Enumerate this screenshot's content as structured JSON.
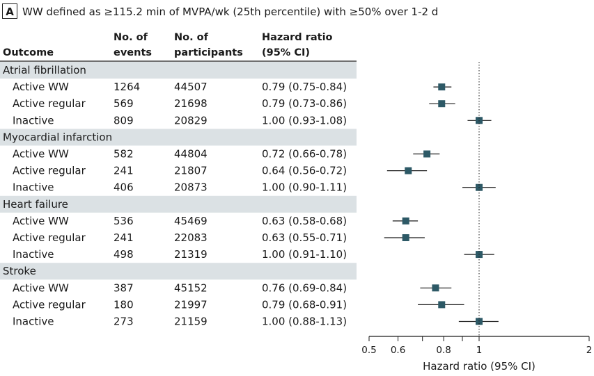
{
  "panel": {
    "letter": "A",
    "title": "WW defined as ≥115.2 min of MVPA/wk (25th percentile) with ≥50% over 1-2 d"
  },
  "table": {
    "headers": {
      "outcome": "Outcome",
      "events_line1": "No. of",
      "events_line2": "events",
      "participants_line1": "No. of",
      "participants_line2": "participants",
      "hr_line1": "Hazard ratio",
      "hr_line2": "(95% CI)"
    }
  },
  "chart_data": {
    "type": "forest",
    "xlabel": "Hazard ratio (95% CI)",
    "xscale": "log",
    "xlim": [
      0.5,
      2
    ],
    "xticks": [
      0.5,
      0.6,
      0.8,
      1,
      2
    ],
    "xtick_labels": [
      "0.5",
      "0.6",
      "0.8",
      "1",
      "2"
    ],
    "reference_line": 1,
    "groups": [
      {
        "name": "Atrial fibrillation",
        "rows": [
          {
            "label": "Active WW",
            "events": "1264",
            "participants": "44507",
            "hr_text": "0.79 (0.75-0.84)",
            "hr": 0.79,
            "lo": 0.75,
            "hi": 0.84
          },
          {
            "label": "Active regular",
            "events": "569",
            "participants": "21698",
            "hr_text": "0.79 (0.73-0.86)",
            "hr": 0.79,
            "lo": 0.73,
            "hi": 0.86
          },
          {
            "label": "Inactive",
            "events": "809",
            "participants": "20829",
            "hr_text": "1.00 (0.93-1.08)",
            "hr": 1.0,
            "lo": 0.93,
            "hi": 1.08
          }
        ]
      },
      {
        "name": "Myocardial infarction",
        "rows": [
          {
            "label": "Active WW",
            "events": "582",
            "participants": "44804",
            "hr_text": "0.72 (0.66-0.78)",
            "hr": 0.72,
            "lo": 0.66,
            "hi": 0.78
          },
          {
            "label": "Active regular",
            "events": "241",
            "participants": "21807",
            "hr_text": "0.64 (0.56-0.72)",
            "hr": 0.64,
            "lo": 0.56,
            "hi": 0.72
          },
          {
            "label": "Inactive",
            "events": "406",
            "participants": "20873",
            "hr_text": "1.00 (0.90-1.11)",
            "hr": 1.0,
            "lo": 0.9,
            "hi": 1.11
          }
        ]
      },
      {
        "name": "Heart failure",
        "rows": [
          {
            "label": "Active WW",
            "events": "536",
            "participants": "45469",
            "hr_text": "0.63 (0.58-0.68)",
            "hr": 0.63,
            "lo": 0.58,
            "hi": 0.68
          },
          {
            "label": "Active regular",
            "events": "241",
            "participants": "22083",
            "hr_text": "0.63 (0.55-0.71)",
            "hr": 0.63,
            "lo": 0.55,
            "hi": 0.71
          },
          {
            "label": "Inactive",
            "events": "498",
            "participants": "21319",
            "hr_text": "1.00 (0.91-1.10)",
            "hr": 1.0,
            "lo": 0.91,
            "hi": 1.1
          }
        ]
      },
      {
        "name": "Stroke",
        "rows": [
          {
            "label": "Active WW",
            "events": "387",
            "participants": "45152",
            "hr_text": "0.76 (0.69-0.84)",
            "hr": 0.76,
            "lo": 0.69,
            "hi": 0.84
          },
          {
            "label": "Active regular",
            "events": "180",
            "participants": "21997",
            "hr_text": "0.79 (0.68-0.91)",
            "hr": 0.79,
            "lo": 0.68,
            "hi": 0.91
          },
          {
            "label": "Inactive",
            "events": "273",
            "participants": "21159",
            "hr_text": "1.00 (0.88-1.13)",
            "hr": 1.0,
            "lo": 0.88,
            "hi": 1.13
          }
        ]
      }
    ],
    "colors": {
      "marker": "#2d5966",
      "group_band": "#dbe1e4",
      "ink": "#1a1a1a"
    }
  }
}
